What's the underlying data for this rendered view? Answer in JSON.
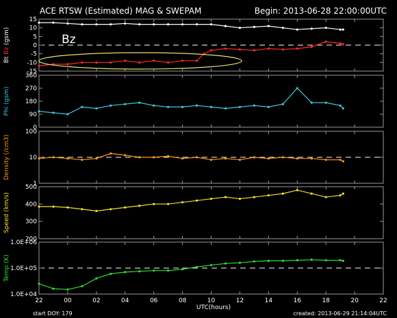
{
  "header": {
    "title": "ACE RTSW (Estimated) MAG & SWEPAM",
    "begin": "Begin: 2013-06-28 22:00:00UTC"
  },
  "footer": {
    "start_doy": "start DOY: 179",
    "created": "created: 2013-06-29 21:14:04UTC"
  },
  "annotation": {
    "label": "Bz",
    "color": "#e8e070"
  },
  "colors": {
    "bt": "#ffffff",
    "bz": "#ff2b2b",
    "phi": "#40c8e0",
    "density": "#ff9a1c",
    "speed": "#f0e030",
    "temp": "#30e030",
    "frame": "#9a9a9a",
    "background": "#000000"
  },
  "chart_data": {
    "type": "scatter",
    "xlabel": "UTC(hours)",
    "x_ticks": [
      "22",
      "00",
      "02",
      "04",
      "06",
      "08",
      "10",
      "12",
      "14",
      "16",
      "18",
      "20",
      "22"
    ],
    "xlim": [
      0,
      24
    ],
    "panels": [
      {
        "id": "mag",
        "ylabel_parts": [
          {
            "text": "Bt",
            "color": "#ffffff"
          },
          {
            "text": " Bz",
            "color": "#ff2b2b"
          },
          {
            "text": " (gsm)",
            "color": "#ffffff"
          }
        ],
        "ylim": [
          -15,
          15
        ],
        "scale": "linear",
        "y_ticks": [
          {
            "v": -15,
            "label": "-15"
          },
          {
            "v": -10,
            "label": "-10"
          },
          {
            "v": -5,
            "label": "-5"
          },
          {
            "v": 0,
            "label": "0"
          },
          {
            "v": 5,
            "label": "5"
          },
          {
            "v": 10,
            "label": "10"
          },
          {
            "v": 15,
            "label": "15"
          }
        ],
        "reference_line": 0,
        "series": [
          {
            "name": "Bt",
            "color": "#ffffff",
            "t": [
              0,
              1,
              2,
              3,
              4,
              5,
              6,
              7,
              8,
              9,
              10,
              11,
              12,
              13,
              14,
              15,
              16,
              17,
              18,
              19,
              20,
              21,
              21.2
            ],
            "values": [
              13,
              13,
              12.5,
              12,
              12,
              12,
              12.5,
              12,
              12,
              12,
              12,
              12,
              12,
              11,
              10,
              10.5,
              11,
              10,
              9,
              9.5,
              10,
              9,
              9
            ]
          },
          {
            "name": "Bz",
            "color": "#ff2b2b",
            "t": [
              0,
              1,
              2,
              3,
              4,
              5,
              6,
              7,
              8,
              9,
              10,
              11,
              11.5,
              12,
              13,
              14,
              15,
              16,
              17,
              18,
              19,
              20,
              21,
              21.2
            ],
            "values": [
              -12,
              -11,
              -11,
              -10,
              -10,
              -10,
              -9,
              -10,
              -9,
              -10,
              -9,
              -9,
              -5,
              -3,
              -2,
              -2.5,
              -3,
              -2,
              -2.5,
              -2,
              -1,
              2,
              1,
              0.5
            ]
          }
        ]
      },
      {
        "id": "phi",
        "ylabel_parts": [
          {
            "text": "Phi (gsm)",
            "color": "#40c8e0"
          }
        ],
        "ylim": [
          0,
          360
        ],
        "scale": "linear",
        "y_ticks": [
          {
            "v": 0,
            "label": "0"
          },
          {
            "v": 90,
            "label": "90"
          },
          {
            "v": 180,
            "label": "180"
          },
          {
            "v": 270,
            "label": "270"
          },
          {
            "v": 360,
            "label": "360"
          }
        ],
        "series": [
          {
            "name": "Phi",
            "color": "#40c8e0",
            "t": [
              0,
              1,
              2,
              3,
              4,
              5,
              6,
              7,
              8,
              9,
              10,
              11,
              12,
              13,
              14,
              15,
              16,
              17,
              18,
              19,
              20,
              21,
              21.2
            ],
            "values": [
              110,
              100,
              90,
              140,
              130,
              150,
              160,
              170,
              150,
              140,
              140,
              150,
              140,
              130,
              140,
              150,
              140,
              160,
              270,
              170,
              170,
              150,
              130
            ]
          }
        ]
      },
      {
        "id": "density",
        "ylabel_parts": [
          {
            "text": "Density (/cm3)",
            "color": "#ff9a1c"
          }
        ],
        "ylim": [
          1,
          100
        ],
        "scale": "log",
        "y_ticks": [
          {
            "v": 1,
            "label": "1"
          },
          {
            "v": 10,
            "label": "10"
          },
          {
            "v": 100,
            "label": "100"
          }
        ],
        "reference_line": 10,
        "series": [
          {
            "name": "Density",
            "color": "#ff9a1c",
            "t": [
              0,
              1,
              2,
              3,
              4,
              5,
              6,
              7,
              8,
              9,
              10,
              11,
              12,
              13,
              14,
              15,
              16,
              17,
              18,
              19,
              20,
              21,
              21.2
            ],
            "values": [
              9,
              10,
              9,
              8,
              9,
              14,
              12,
              10,
              10,
              11,
              9,
              10,
              8,
              9,
              8,
              10,
              9,
              10,
              9,
              9,
              8,
              8,
              7
            ]
          }
        ]
      },
      {
        "id": "speed",
        "ylabel_parts": [
          {
            "text": "Speed (km/s)",
            "color": "#f0e030"
          }
        ],
        "ylim": [
          200,
          500
        ],
        "scale": "linear",
        "y_ticks": [
          {
            "v": 200,
            "label": "200"
          },
          {
            "v": 300,
            "label": "300"
          },
          {
            "v": 400,
            "label": "400"
          },
          {
            "v": 500,
            "label": "500"
          }
        ],
        "series": [
          {
            "name": "Speed",
            "color": "#f0e030",
            "t": [
              0,
              1,
              2,
              3,
              4,
              5,
              6,
              7,
              8,
              9,
              10,
              11,
              12,
              13,
              14,
              15,
              16,
              17,
              18,
              19,
              20,
              21,
              21.2
            ],
            "values": [
              385,
              385,
              380,
              370,
              360,
              370,
              380,
              390,
              400,
              400,
              410,
              420,
              430,
              440,
              430,
              440,
              450,
              460,
              480,
              460,
              440,
              450,
              460
            ]
          }
        ]
      },
      {
        "id": "temp",
        "ylabel_parts": [
          {
            "text": "Temp (K)",
            "color": "#30e030"
          }
        ],
        "ylim": [
          10000,
          1000000
        ],
        "scale": "log",
        "y_ticks": [
          {
            "v": 10000,
            "label": "1.0E+04"
          },
          {
            "v": 100000,
            "label": "1.0E+05"
          },
          {
            "v": 1000000,
            "label": "1.0E+06"
          }
        ],
        "reference_line": 100000,
        "series": [
          {
            "name": "Temp",
            "color": "#30e030",
            "t": [
              0,
              1,
              2,
              3,
              4,
              5,
              6,
              7,
              8,
              9,
              10,
              11,
              12,
              13,
              14,
              15,
              16,
              17,
              18,
              19,
              20,
              21,
              21.2
            ],
            "values": [
              25000,
              16000,
              15000,
              20000,
              40000,
              60000,
              70000,
              75000,
              80000,
              80000,
              90000,
              110000,
              130000,
              150000,
              160000,
              180000,
              190000,
              190000,
              200000,
              210000,
              200000,
              200000,
              190000
            ]
          }
        ]
      }
    ]
  }
}
